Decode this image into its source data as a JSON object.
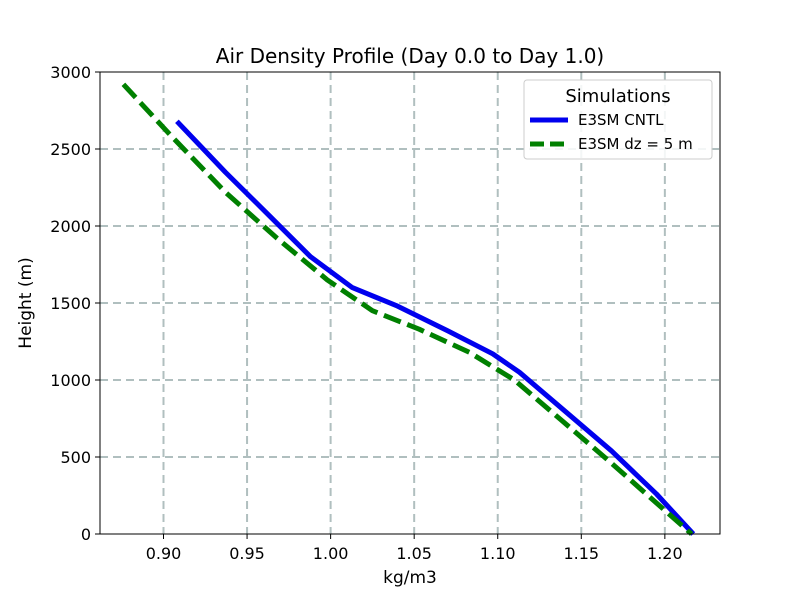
{
  "chart_data": {
    "type": "line",
    "title": "Air Density Profile (Day 0.0 to Day 1.0)",
    "xlabel": "kg/m3",
    "ylabel": "Height (m)",
    "xlim": [
      0.862,
      1.233
    ],
    "ylim": [
      0,
      3000
    ],
    "xticks": [
      0.9,
      0.95,
      1.0,
      1.05,
      1.1,
      1.15,
      1.2
    ],
    "xtick_labels": [
      "0.90",
      "0.95",
      "1.00",
      "1.05",
      "1.10",
      "1.15",
      "1.20"
    ],
    "yticks": [
      0,
      500,
      1000,
      1500,
      2000,
      2500,
      3000
    ],
    "ytick_labels": [
      "0",
      "500",
      "1000",
      "1500",
      "2000",
      "2500",
      "3000"
    ],
    "grid": true,
    "legend": {
      "title": "Simulations",
      "location": "top-right"
    },
    "series": [
      {
        "name": "E3SM CNTL",
        "color": "#0000ee",
        "style": "solid",
        "points": [
          [
            0.908,
            2680
          ],
          [
            0.937,
            2350
          ],
          [
            0.963,
            2070
          ],
          [
            0.988,
            1800
          ],
          [
            1.013,
            1600
          ],
          [
            1.04,
            1480
          ],
          [
            1.07,
            1320
          ],
          [
            1.097,
            1170
          ],
          [
            1.113,
            1050
          ],
          [
            1.14,
            800
          ],
          [
            1.168,
            540
          ],
          [
            1.195,
            260
          ],
          [
            1.217,
            0
          ]
        ]
      },
      {
        "name": "E3SM dz = 5 m",
        "color": "#008000",
        "style": "dashed",
        "points": [
          [
            0.876,
            2920
          ],
          [
            0.905,
            2580
          ],
          [
            0.937,
            2220
          ],
          [
            0.968,
            1920
          ],
          [
            0.998,
            1650
          ],
          [
            1.025,
            1450
          ],
          [
            1.053,
            1330
          ],
          [
            1.083,
            1180
          ],
          [
            1.11,
            1000
          ],
          [
            1.138,
            740
          ],
          [
            1.167,
            470
          ],
          [
            1.193,
            220
          ],
          [
            1.216,
            0
          ]
        ]
      }
    ]
  }
}
